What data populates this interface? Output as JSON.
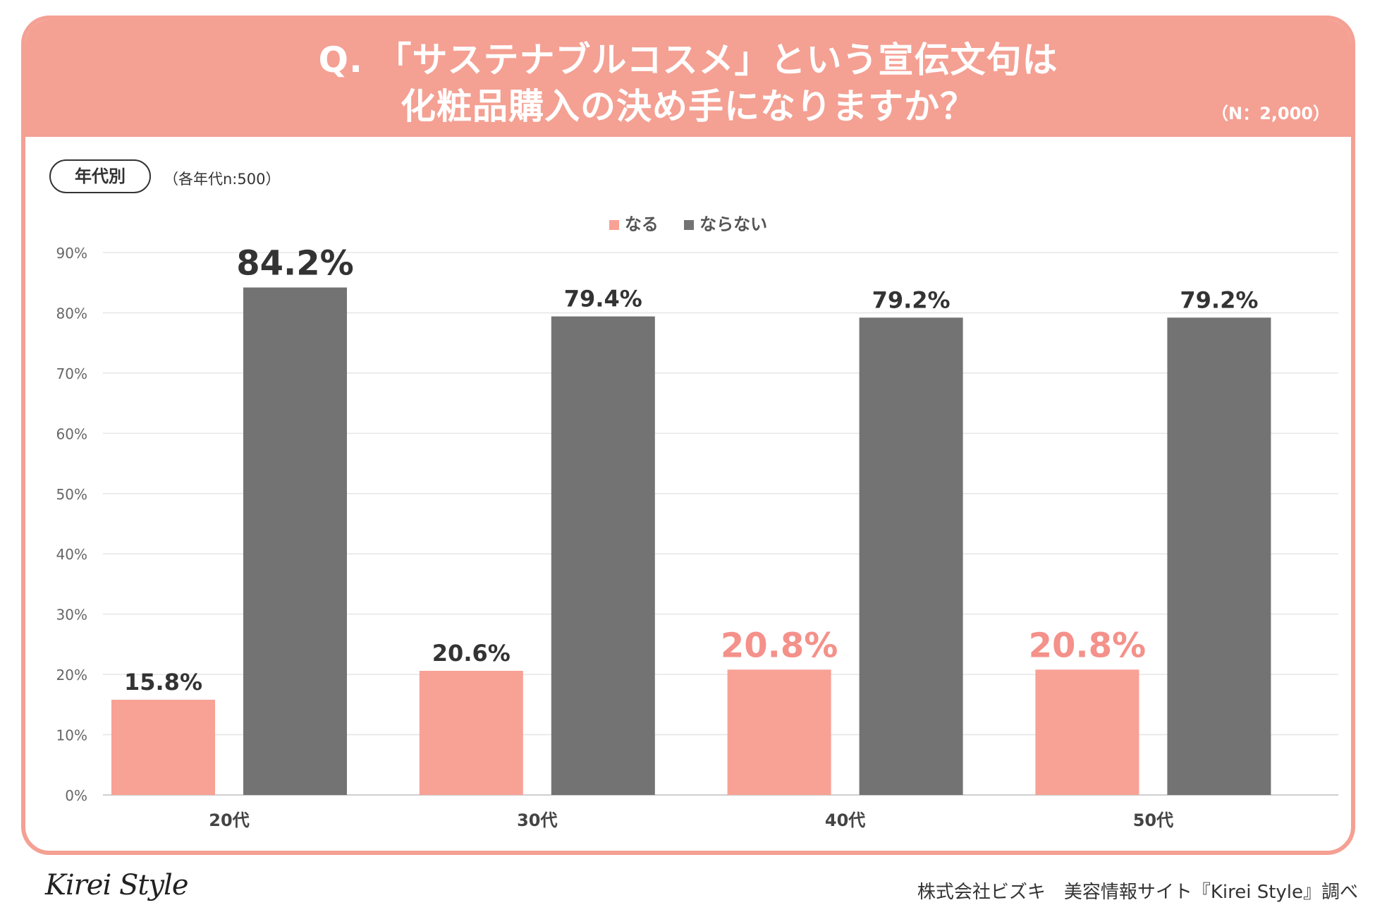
{
  "header": {
    "title_line1": "Q. 「サステナブルコスメ」という宣伝文句は",
    "title_line2": "化粧品購入の決め手になりますか？",
    "sample_size": "（N：2,000）"
  },
  "group": {
    "tag": "年代別",
    "note": "（各年代n:500）"
  },
  "colors": {
    "naru": "#f8a195",
    "naranai": "#737373",
    "accent": "#f4a093",
    "grid": "#e6e6e6"
  },
  "chart_data": {
    "type": "bar",
    "categories": [
      "20代",
      "30代",
      "40代",
      "50代"
    ],
    "series": [
      {
        "name": "なる",
        "values": [
          15.8,
          20.6,
          20.8,
          20.8
        ]
      },
      {
        "name": "ならない",
        "values": [
          84.2,
          79.4,
          79.2,
          79.2
        ]
      }
    ],
    "data_labels": [
      [
        "15.8%",
        "20.6%",
        "20.8%",
        "20.8%"
      ],
      [
        "84.2%",
        "79.4%",
        "79.2%",
        "79.2%"
      ]
    ],
    "highlight_labels": {
      "naru": [
        false,
        false,
        true,
        true
      ],
      "naranai": [
        true,
        false,
        false,
        false
      ]
    },
    "ylim": [
      0,
      90
    ],
    "yticks": [
      "0%",
      "10%",
      "20%",
      "30%",
      "40%",
      "50%",
      "60%",
      "70%",
      "80%",
      "90%"
    ],
    "grid": true,
    "legend_position": "top-center",
    "title": "",
    "xlabel": "",
    "ylabel": ""
  },
  "footer": {
    "logo": "Kirei Style",
    "credit": "株式会社ビズキ　美容情報サイト『Kirei Style』調べ"
  }
}
